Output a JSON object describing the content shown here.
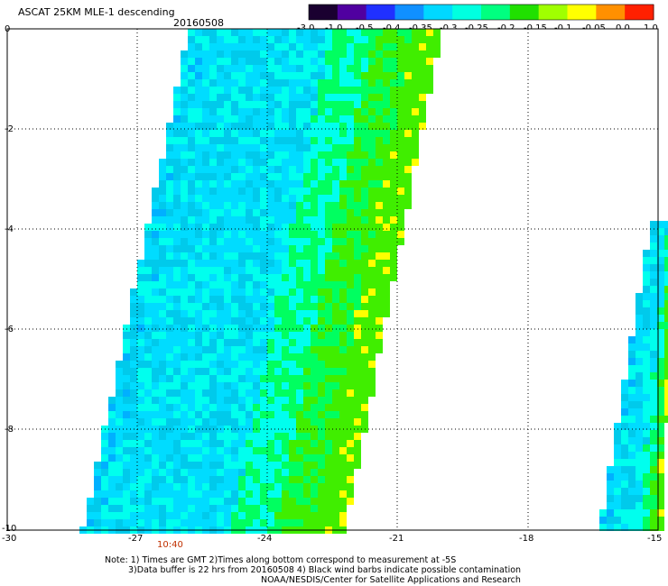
{
  "header": {
    "title": "ASCAT 25KM MLE-1 descending",
    "date": "20160508"
  },
  "colorbar": {
    "labels": [
      "-3.0",
      "-1.0",
      "-0.5",
      "-0.4",
      "-0.35",
      "-0.3",
      "-0.25",
      "-0.2",
      "-0.15",
      "-0.1",
      "-0.05",
      "0.0",
      "1.0"
    ],
    "colors": [
      "#1a0030",
      "#5000a0",
      "#2030ff",
      "#1090ff",
      "#00d8ff",
      "#00ffe0",
      "#00ff80",
      "#20e000",
      "#a0ff00",
      "#ffff00",
      "#ff9000",
      "#ff2000"
    ]
  },
  "axes": {
    "x_ticks": [
      "-30",
      "-27",
      "-24",
      "-21",
      "-18",
      "-15"
    ],
    "y_ticks": [
      "0",
      "-2",
      "-4",
      "-6",
      "-8",
      "-10"
    ],
    "xlim": [
      -30,
      -15
    ],
    "ylim": [
      -10,
      0
    ]
  },
  "pass_time": {
    "label": "10:40",
    "color": "#c03000"
  },
  "notes": {
    "line1": "Note: 1) Times are GMT 2)Times along bottom correspond to measurement at -5S",
    "line2": "3)Data buffer is 22 hrs from 20160508 4) Black wind barbs indicate possible contamination",
    "line3": "NOAA/NESDIS/Center for Satellite Applications and Research"
  },
  "legend_colors": {
    "water_low": "#00dcff",
    "water_mid": "#00ffee",
    "edge_green": "#00ff60",
    "edge_bright": "#40ee00",
    "edge_yellow": "#ffff00",
    "spot_blue": "#00b0ff"
  }
}
